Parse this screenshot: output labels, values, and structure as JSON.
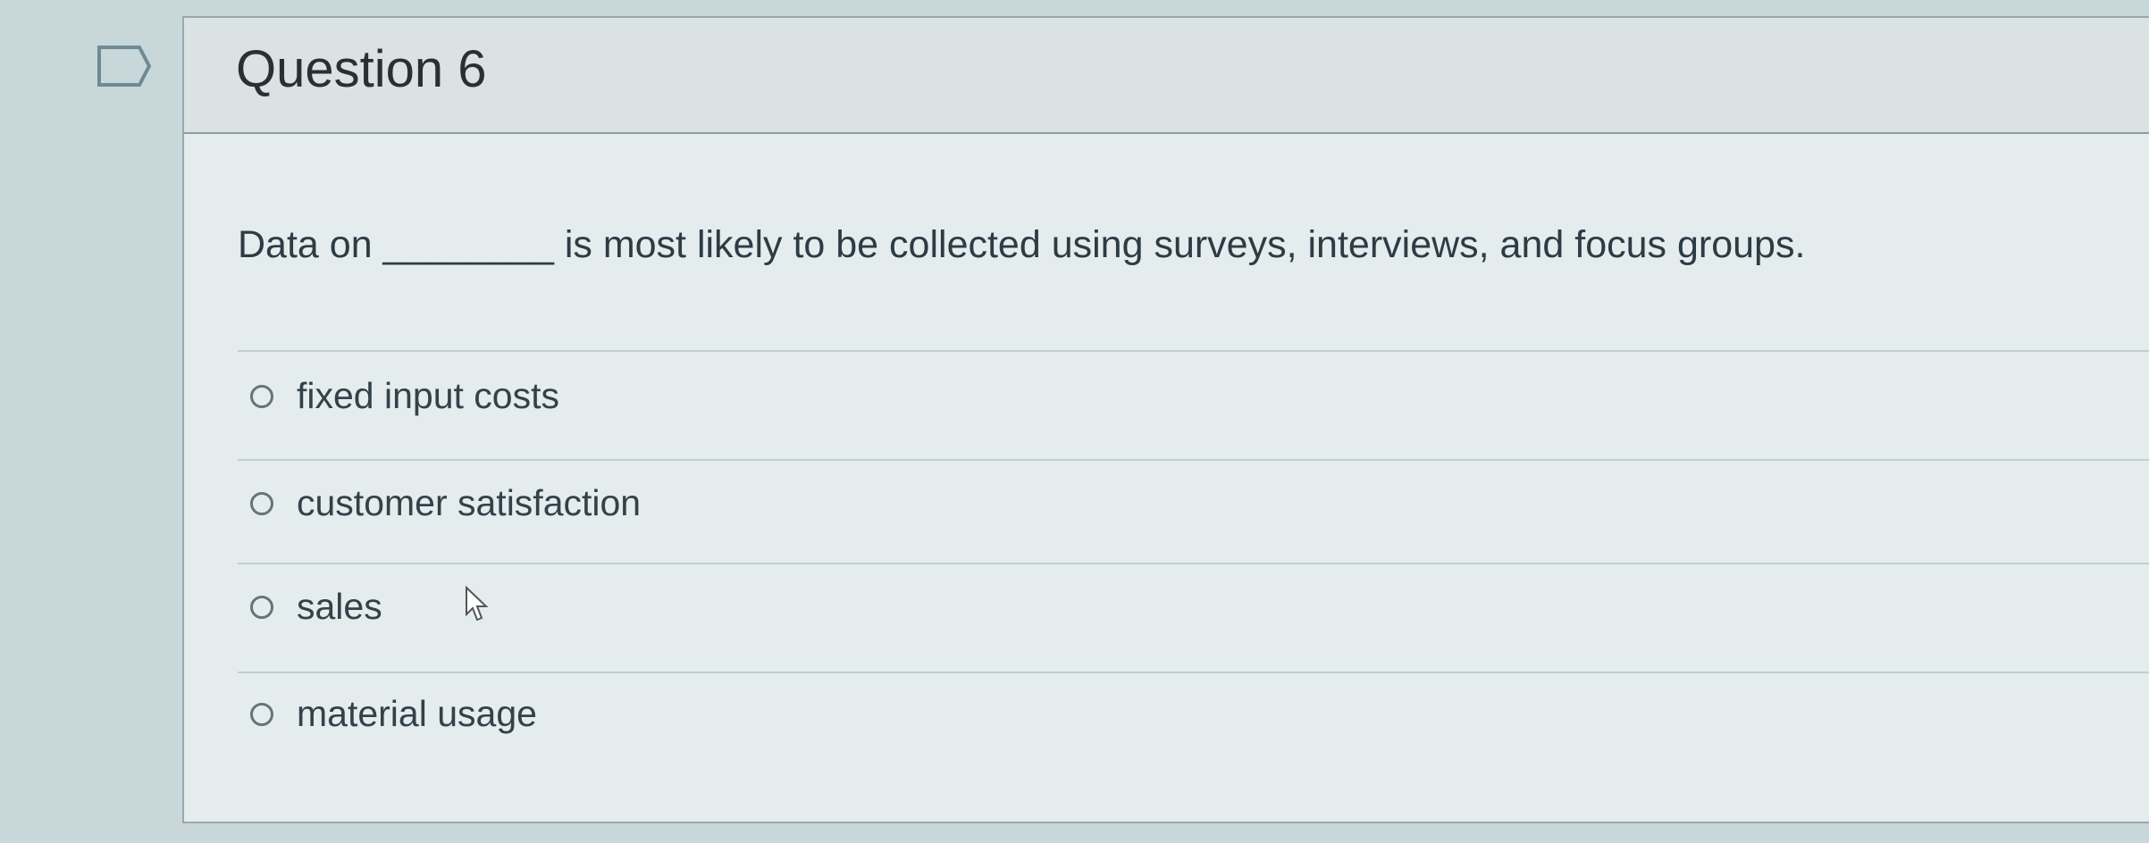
{
  "question": {
    "title": "Question 6",
    "flag_icon": "bookmark-flag-icon",
    "text": "Data on ________ is most likely to be collected using surveys, interviews, and focus groups.",
    "options": [
      {
        "label": "fixed input costs",
        "selected": false
      },
      {
        "label": "customer satisfaction",
        "selected": false
      },
      {
        "label": "sales",
        "selected": false
      },
      {
        "label": "material usage",
        "selected": false
      }
    ]
  },
  "colors": {
    "text": "#2d3b45",
    "background": "#e4eced",
    "header": "#dae2e4"
  }
}
